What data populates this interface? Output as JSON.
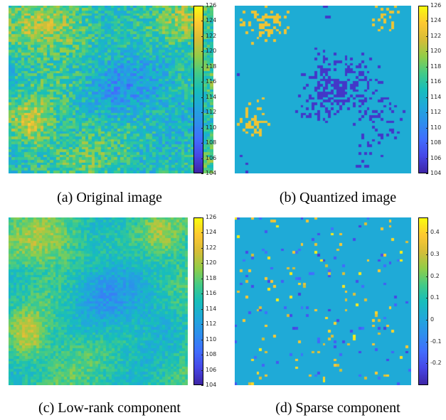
{
  "figure": {
    "panels": [
      {
        "id": "a",
        "caption": "(a) Original image",
        "colorbar": {
          "min": 104,
          "max": 126,
          "ticks": [
            "126",
            "124",
            "122",
            "120",
            "118",
            "116",
            "114",
            "112",
            "110",
            "108",
            "106",
            "104"
          ]
        },
        "colors": {
          "low": "#3e26a8",
          "mid": "#21b0c2",
          "high": "#f9fb0e"
        }
      },
      {
        "id": "b",
        "caption": "(b) Quantized image",
        "colorbar": {
          "min": 104,
          "max": 126,
          "ticks": [
            "126",
            "124",
            "122",
            "120",
            "118",
            "116",
            "114",
            "112",
            "110",
            "108",
            "106",
            "104"
          ]
        },
        "colors": {
          "low": "#3e26a8",
          "mid": "#21b0c2",
          "high": "#f9fb0e"
        }
      },
      {
        "id": "c",
        "caption": "(c) Low-rank component",
        "colorbar": {
          "min": 104,
          "max": 126,
          "ticks": [
            "126",
            "124",
            "122",
            "120",
            "118",
            "116",
            "114",
            "112",
            "110",
            "108",
            "106",
            "104"
          ]
        },
        "colors": {
          "low": "#3e26a8",
          "mid": "#21b0c2",
          "high": "#f9fb0e"
        }
      },
      {
        "id": "d",
        "caption": "(d) Sparse component",
        "colorbar": {
          "min": -0.3,
          "max": 0.47,
          "ticks": [
            "0.4",
            "0.3",
            "0.2",
            "0.1",
            "0",
            "-0.1",
            "-0.2"
          ]
        },
        "colors": {
          "low": "#3e26a8",
          "mid": "#21b0c2",
          "high": "#f9fb0e"
        }
      }
    ]
  }
}
